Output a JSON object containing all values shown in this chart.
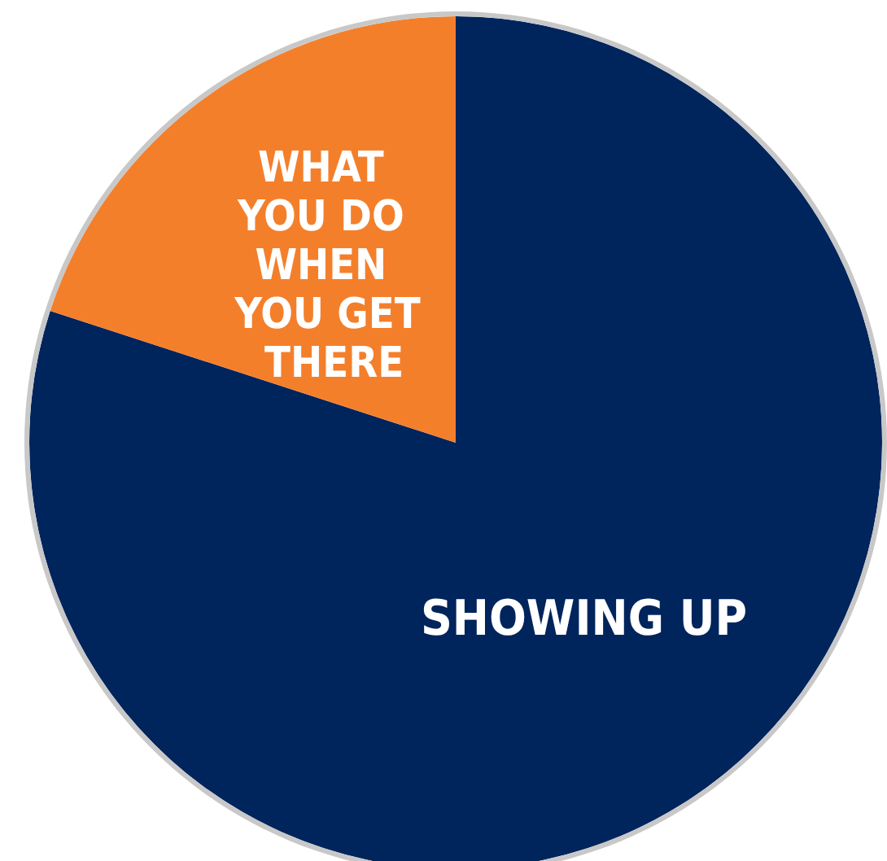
{
  "chart_data": {
    "type": "pie",
    "categories": [
      "SHOWING UP",
      "WHAT YOU DO WHEN YOU GET THERE"
    ],
    "values": [
      80,
      20
    ],
    "colors": [
      "#00245c",
      "#f47f2b"
    ],
    "legend": false
  }
}
